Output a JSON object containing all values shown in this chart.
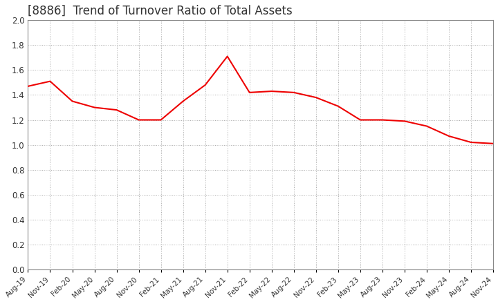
{
  "title": "[8886]  Trend of Turnover Ratio of Total Assets",
  "title_fontsize": 12,
  "line_color": "#ee0000",
  "background_color": "#ffffff",
  "grid_color": "#aaaaaa",
  "ylim": [
    0.0,
    2.0
  ],
  "yticks": [
    0.0,
    0.2,
    0.4,
    0.6,
    0.8,
    1.0,
    1.2,
    1.4,
    1.6,
    1.8,
    2.0
  ],
  "xlabels": [
    "Aug-19",
    "Nov-19",
    "Feb-20",
    "May-20",
    "Aug-20",
    "Nov-20",
    "Feb-21",
    "May-21",
    "Aug-21",
    "Nov-21",
    "Feb-22",
    "May-22",
    "Aug-22",
    "Nov-22",
    "Feb-23",
    "May-23",
    "Aug-23",
    "Nov-23",
    "Feb-24",
    "May-24",
    "Aug-24",
    "Nov-24"
  ],
  "values": [
    1.47,
    1.51,
    1.35,
    1.3,
    1.28,
    1.2,
    1.2,
    1.35,
    1.48,
    1.71,
    1.42,
    1.43,
    1.42,
    1.38,
    1.31,
    1.2,
    1.2,
    1.19,
    1.15,
    1.07,
    1.02,
    1.01
  ]
}
